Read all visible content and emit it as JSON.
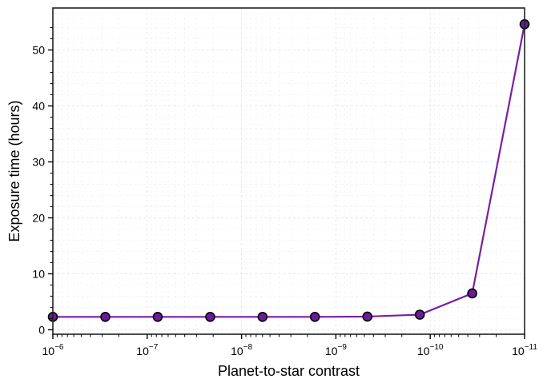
{
  "chart_data": {
    "type": "line",
    "xlabel": "Planet-to-star contrast",
    "ylabel": "Exposure time (hours)",
    "x_scale": "log",
    "x_reversed": true,
    "xlim": [
      1e-06,
      1e-11
    ],
    "ylim": [
      -0.8,
      57.5
    ],
    "x_ticks": [
      {
        "base": "10",
        "exp": "−6",
        "value": 1e-06
      },
      {
        "base": "10",
        "exp": "−7",
        "value": 1e-07
      },
      {
        "base": "10",
        "exp": "−8",
        "value": 1e-08
      },
      {
        "base": "10",
        "exp": "−9",
        "value": 1e-09
      },
      {
        "base": "10",
        "exp": "−10",
        "value": 1e-10
      },
      {
        "base": "10",
        "exp": "−11",
        "value": 1e-11
      }
    ],
    "y_ticks": [
      "0",
      "10",
      "20",
      "30",
      "40",
      "50"
    ],
    "grid": true,
    "series": [
      {
        "line_color": "#7a1fa2",
        "marker_color": "#6a1b9a",
        "marker_edge": "#000000",
        "x": [
          1e-06,
          2.78e-07,
          7.74e-08,
          2.15e-08,
          5.99e-09,
          1.67e-09,
          4.64e-10,
          1.29e-10,
          3.59e-11,
          1e-11
        ],
        "y": [
          2.3,
          2.3,
          2.3,
          2.3,
          2.3,
          2.3,
          2.35,
          2.7,
          6.5,
          54.6
        ]
      }
    ]
  }
}
